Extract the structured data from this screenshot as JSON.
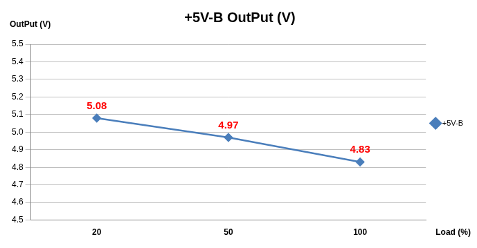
{
  "chart_data": {
    "type": "line",
    "title": "+5V-B OutPut (V)",
    "x_label": "Load (%)",
    "y_label": "OutPut (V)",
    "categories": [
      "20",
      "50",
      "100"
    ],
    "series": [
      {
        "name": "+5V-B",
        "color": "#4a7ebb",
        "marker": "diamond",
        "values": [
          5.08,
          4.97,
          4.83
        ]
      }
    ],
    "ylim": [
      4.5,
      5.5
    ],
    "yticks": [
      4.5,
      4.6,
      4.7,
      4.8,
      4.9,
      {
        "value": 5,
        "label": "5.0"
      },
      5.1,
      5.2,
      5.3,
      5.4,
      5.5
    ],
    "grid": true,
    "legend": "right",
    "data_labels": true
  }
}
